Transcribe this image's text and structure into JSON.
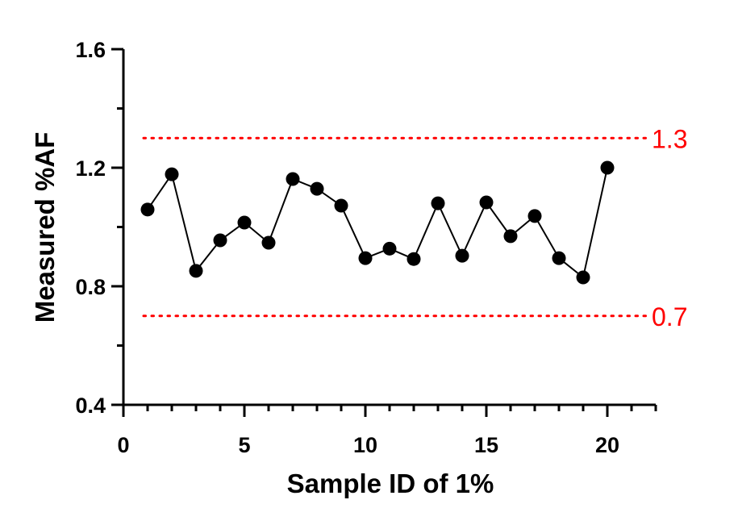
{
  "chart_data": {
    "type": "line",
    "xlabel": "Sample ID of 1%",
    "ylabel": "Measured %AF",
    "xlim": [
      0,
      22
    ],
    "ylim": [
      0.4,
      1.6
    ],
    "x_ticks": [
      0,
      5,
      10,
      15,
      20
    ],
    "x_tick_labels": [
      "0",
      "5",
      "10",
      "15",
      "20"
    ],
    "y_ticks": [
      0.4,
      0.8,
      1.2,
      1.6
    ],
    "y_tick_labels": [
      "0.4",
      "0.8",
      "1.2",
      "1.6"
    ],
    "grid": false,
    "series": [
      {
        "x": [
          1,
          2,
          3,
          4,
          5,
          6,
          7,
          8,
          9,
          10,
          11,
          12,
          13,
          14,
          15,
          16,
          17,
          18,
          19,
          20
        ],
        "y": [
          1.059,
          1.178,
          0.852,
          0.955,
          1.015,
          0.947,
          1.162,
          1.129,
          1.072,
          0.895,
          0.927,
          0.892,
          1.08,
          0.903,
          1.083,
          0.969,
          1.037,
          0.895,
          0.83,
          1.2
        ],
        "color": "#000000"
      }
    ],
    "reference_lines": [
      {
        "y": 1.3,
        "label": "1.3",
        "color": "#ff0000",
        "style": "dotted"
      },
      {
        "y": 0.7,
        "label": "0.7",
        "color": "#ff0000",
        "style": "dotted"
      }
    ]
  }
}
